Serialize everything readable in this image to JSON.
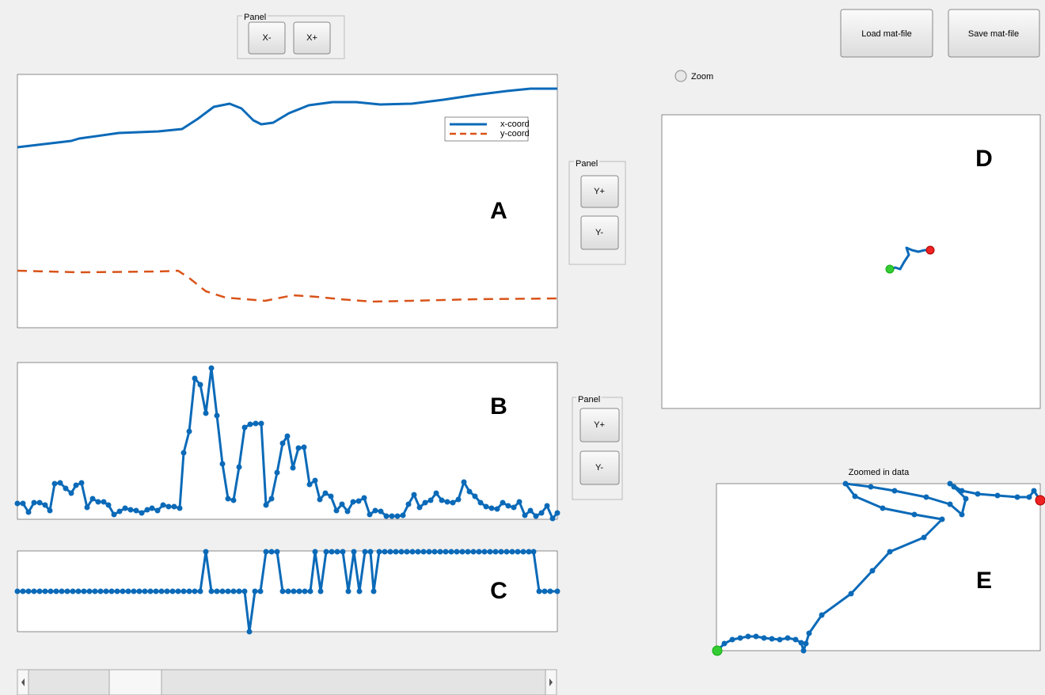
{
  "top_panel": {
    "title": "Panel",
    "buttons": [
      "X-",
      "X+"
    ]
  },
  "file_buttons": [
    "Load mat-file",
    "Save mat-file"
  ],
  "zoom": "Zoom",
  "panel_a": {
    "title": "Panel",
    "buttons": [
      "Y+",
      "Y-"
    ]
  },
  "panel_b": {
    "title": "Panel",
    "buttons": [
      "Y+",
      "Y-"
    ]
  },
  "legend": [
    "x-coord",
    "y-coord"
  ],
  "plot_labels": [
    "A",
    "B",
    "C",
    "D",
    "E"
  ],
  "zoom_title": "Zoomed in data"
}
